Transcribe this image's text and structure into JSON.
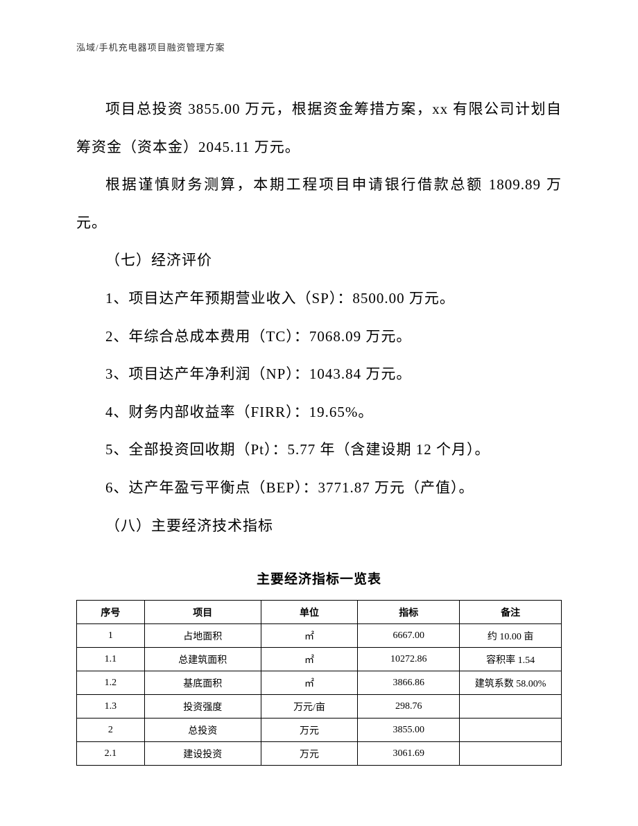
{
  "header": {
    "text": "泓域/手机充电器项目融资管理方案"
  },
  "paragraphs": {
    "p1": "项目总投资 3855.00 万元，根据资金筹措方案，xx 有限公司计划自筹资金（资本金）2045.11 万元。",
    "p2": "根据谨慎财务测算，本期工程项目申请银行借款总额 1809.89 万元。",
    "p3": "（七）经济评价",
    "p4": "1、项目达产年预期营业收入（SP）：8500.00 万元。",
    "p5": "2、年综合总成本费用（TC）：7068.09 万元。",
    "p6": "3、项目达产年净利润（NP）：1043.84 万元。",
    "p7": "4、财务内部收益率（FIRR）：19.65%。",
    "p8": "5、全部投资回收期（Pt）：5.77 年（含建设期 12 个月）。",
    "p9": "6、达产年盈亏平衡点（BEP）：3771.87 万元（产值）。",
    "p10": "（八）主要经济技术指标"
  },
  "table": {
    "title": "主要经济指标一览表",
    "columns": [
      "序号",
      "项目",
      "单位",
      "指标",
      "备注"
    ],
    "column_widths": [
      "14%",
      "24%",
      "20%",
      "21%",
      "21%"
    ],
    "rows": [
      [
        "1",
        "占地面积",
        "㎡",
        "6667.00",
        "约 10.00 亩"
      ],
      [
        "1.1",
        "总建筑面积",
        "㎡",
        "10272.86",
        "容积率 1.54"
      ],
      [
        "1.2",
        "基底面积",
        "㎡",
        "3866.86",
        "建筑系数 58.00%"
      ],
      [
        "1.3",
        "投资强度",
        "万元/亩",
        "298.76",
        ""
      ],
      [
        "2",
        "总投资",
        "万元",
        "3855.00",
        ""
      ],
      [
        "2.1",
        "建设投资",
        "万元",
        "3061.69",
        ""
      ]
    ]
  },
  "styles": {
    "background_color": "#ffffff",
    "text_color": "#000000",
    "header_color": "#333333",
    "body_fontsize": 21,
    "header_fontsize": 13,
    "table_fontsize": 14,
    "table_title_fontsize": 19,
    "border_color": "#000000"
  }
}
